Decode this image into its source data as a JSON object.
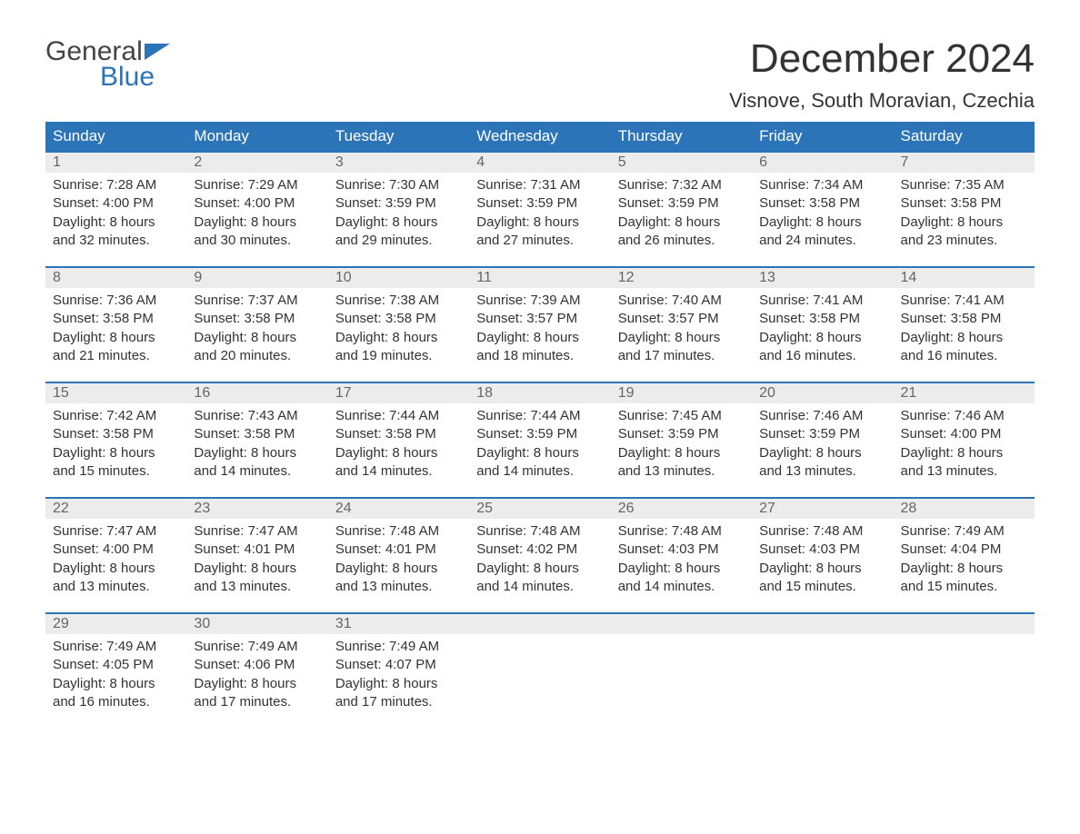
{
  "logo": {
    "word1": "General",
    "word2": "Blue"
  },
  "title": "December 2024",
  "location": "Visnove, South Moravian, Czechia",
  "colors": {
    "header_bg": "#2b74b8",
    "header_text": "#ffffff",
    "date_bg": "#ececec",
    "date_text": "#666666",
    "body_text": "#333333",
    "week_border": "#2b74b8",
    "logo_gray": "#444444",
    "logo_blue": "#2b74b8",
    "page_bg": "#ffffff"
  },
  "day_names": [
    "Sunday",
    "Monday",
    "Tuesday",
    "Wednesday",
    "Thursday",
    "Friday",
    "Saturday"
  ],
  "labels": {
    "sunrise_prefix": "Sunrise: ",
    "sunset_prefix": "Sunset: ",
    "daylight_prefix": "Daylight: ",
    "and": "and ",
    "hours": " hours",
    "minutes": " minutes."
  },
  "weeks": [
    [
      {
        "date": "1",
        "sunrise": "7:28 AM",
        "sunset": "4:00 PM",
        "dl_h": "8",
        "dl_m": "32"
      },
      {
        "date": "2",
        "sunrise": "7:29 AM",
        "sunset": "4:00 PM",
        "dl_h": "8",
        "dl_m": "30"
      },
      {
        "date": "3",
        "sunrise": "7:30 AM",
        "sunset": "3:59 PM",
        "dl_h": "8",
        "dl_m": "29"
      },
      {
        "date": "4",
        "sunrise": "7:31 AM",
        "sunset": "3:59 PM",
        "dl_h": "8",
        "dl_m": "27"
      },
      {
        "date": "5",
        "sunrise": "7:32 AM",
        "sunset": "3:59 PM",
        "dl_h": "8",
        "dl_m": "26"
      },
      {
        "date": "6",
        "sunrise": "7:34 AM",
        "sunset": "3:58 PM",
        "dl_h": "8",
        "dl_m": "24"
      },
      {
        "date": "7",
        "sunrise": "7:35 AM",
        "sunset": "3:58 PM",
        "dl_h": "8",
        "dl_m": "23"
      }
    ],
    [
      {
        "date": "8",
        "sunrise": "7:36 AM",
        "sunset": "3:58 PM",
        "dl_h": "8",
        "dl_m": "21"
      },
      {
        "date": "9",
        "sunrise": "7:37 AM",
        "sunset": "3:58 PM",
        "dl_h": "8",
        "dl_m": "20"
      },
      {
        "date": "10",
        "sunrise": "7:38 AM",
        "sunset": "3:58 PM",
        "dl_h": "8",
        "dl_m": "19"
      },
      {
        "date": "11",
        "sunrise": "7:39 AM",
        "sunset": "3:57 PM",
        "dl_h": "8",
        "dl_m": "18"
      },
      {
        "date": "12",
        "sunrise": "7:40 AM",
        "sunset": "3:57 PM",
        "dl_h": "8",
        "dl_m": "17"
      },
      {
        "date": "13",
        "sunrise": "7:41 AM",
        "sunset": "3:58 PM",
        "dl_h": "8",
        "dl_m": "16"
      },
      {
        "date": "14",
        "sunrise": "7:41 AM",
        "sunset": "3:58 PM",
        "dl_h": "8",
        "dl_m": "16"
      }
    ],
    [
      {
        "date": "15",
        "sunrise": "7:42 AM",
        "sunset": "3:58 PM",
        "dl_h": "8",
        "dl_m": "15"
      },
      {
        "date": "16",
        "sunrise": "7:43 AM",
        "sunset": "3:58 PM",
        "dl_h": "8",
        "dl_m": "14"
      },
      {
        "date": "17",
        "sunrise": "7:44 AM",
        "sunset": "3:58 PM",
        "dl_h": "8",
        "dl_m": "14"
      },
      {
        "date": "18",
        "sunrise": "7:44 AM",
        "sunset": "3:59 PM",
        "dl_h": "8",
        "dl_m": "14"
      },
      {
        "date": "19",
        "sunrise": "7:45 AM",
        "sunset": "3:59 PM",
        "dl_h": "8",
        "dl_m": "13"
      },
      {
        "date": "20",
        "sunrise": "7:46 AM",
        "sunset": "3:59 PM",
        "dl_h": "8",
        "dl_m": "13"
      },
      {
        "date": "21",
        "sunrise": "7:46 AM",
        "sunset": "4:00 PM",
        "dl_h": "8",
        "dl_m": "13"
      }
    ],
    [
      {
        "date": "22",
        "sunrise": "7:47 AM",
        "sunset": "4:00 PM",
        "dl_h": "8",
        "dl_m": "13"
      },
      {
        "date": "23",
        "sunrise": "7:47 AM",
        "sunset": "4:01 PM",
        "dl_h": "8",
        "dl_m": "13"
      },
      {
        "date": "24",
        "sunrise": "7:48 AM",
        "sunset": "4:01 PM",
        "dl_h": "8",
        "dl_m": "13"
      },
      {
        "date": "25",
        "sunrise": "7:48 AM",
        "sunset": "4:02 PM",
        "dl_h": "8",
        "dl_m": "14"
      },
      {
        "date": "26",
        "sunrise": "7:48 AM",
        "sunset": "4:03 PM",
        "dl_h": "8",
        "dl_m": "14"
      },
      {
        "date": "27",
        "sunrise": "7:48 AM",
        "sunset": "4:03 PM",
        "dl_h": "8",
        "dl_m": "15"
      },
      {
        "date": "28",
        "sunrise": "7:49 AM",
        "sunset": "4:04 PM",
        "dl_h": "8",
        "dl_m": "15"
      }
    ],
    [
      {
        "date": "29",
        "sunrise": "7:49 AM",
        "sunset": "4:05 PM",
        "dl_h": "8",
        "dl_m": "16"
      },
      {
        "date": "30",
        "sunrise": "7:49 AM",
        "sunset": "4:06 PM",
        "dl_h": "8",
        "dl_m": "17"
      },
      {
        "date": "31",
        "sunrise": "7:49 AM",
        "sunset": "4:07 PM",
        "dl_h": "8",
        "dl_m": "17"
      },
      null,
      null,
      null,
      null
    ]
  ]
}
